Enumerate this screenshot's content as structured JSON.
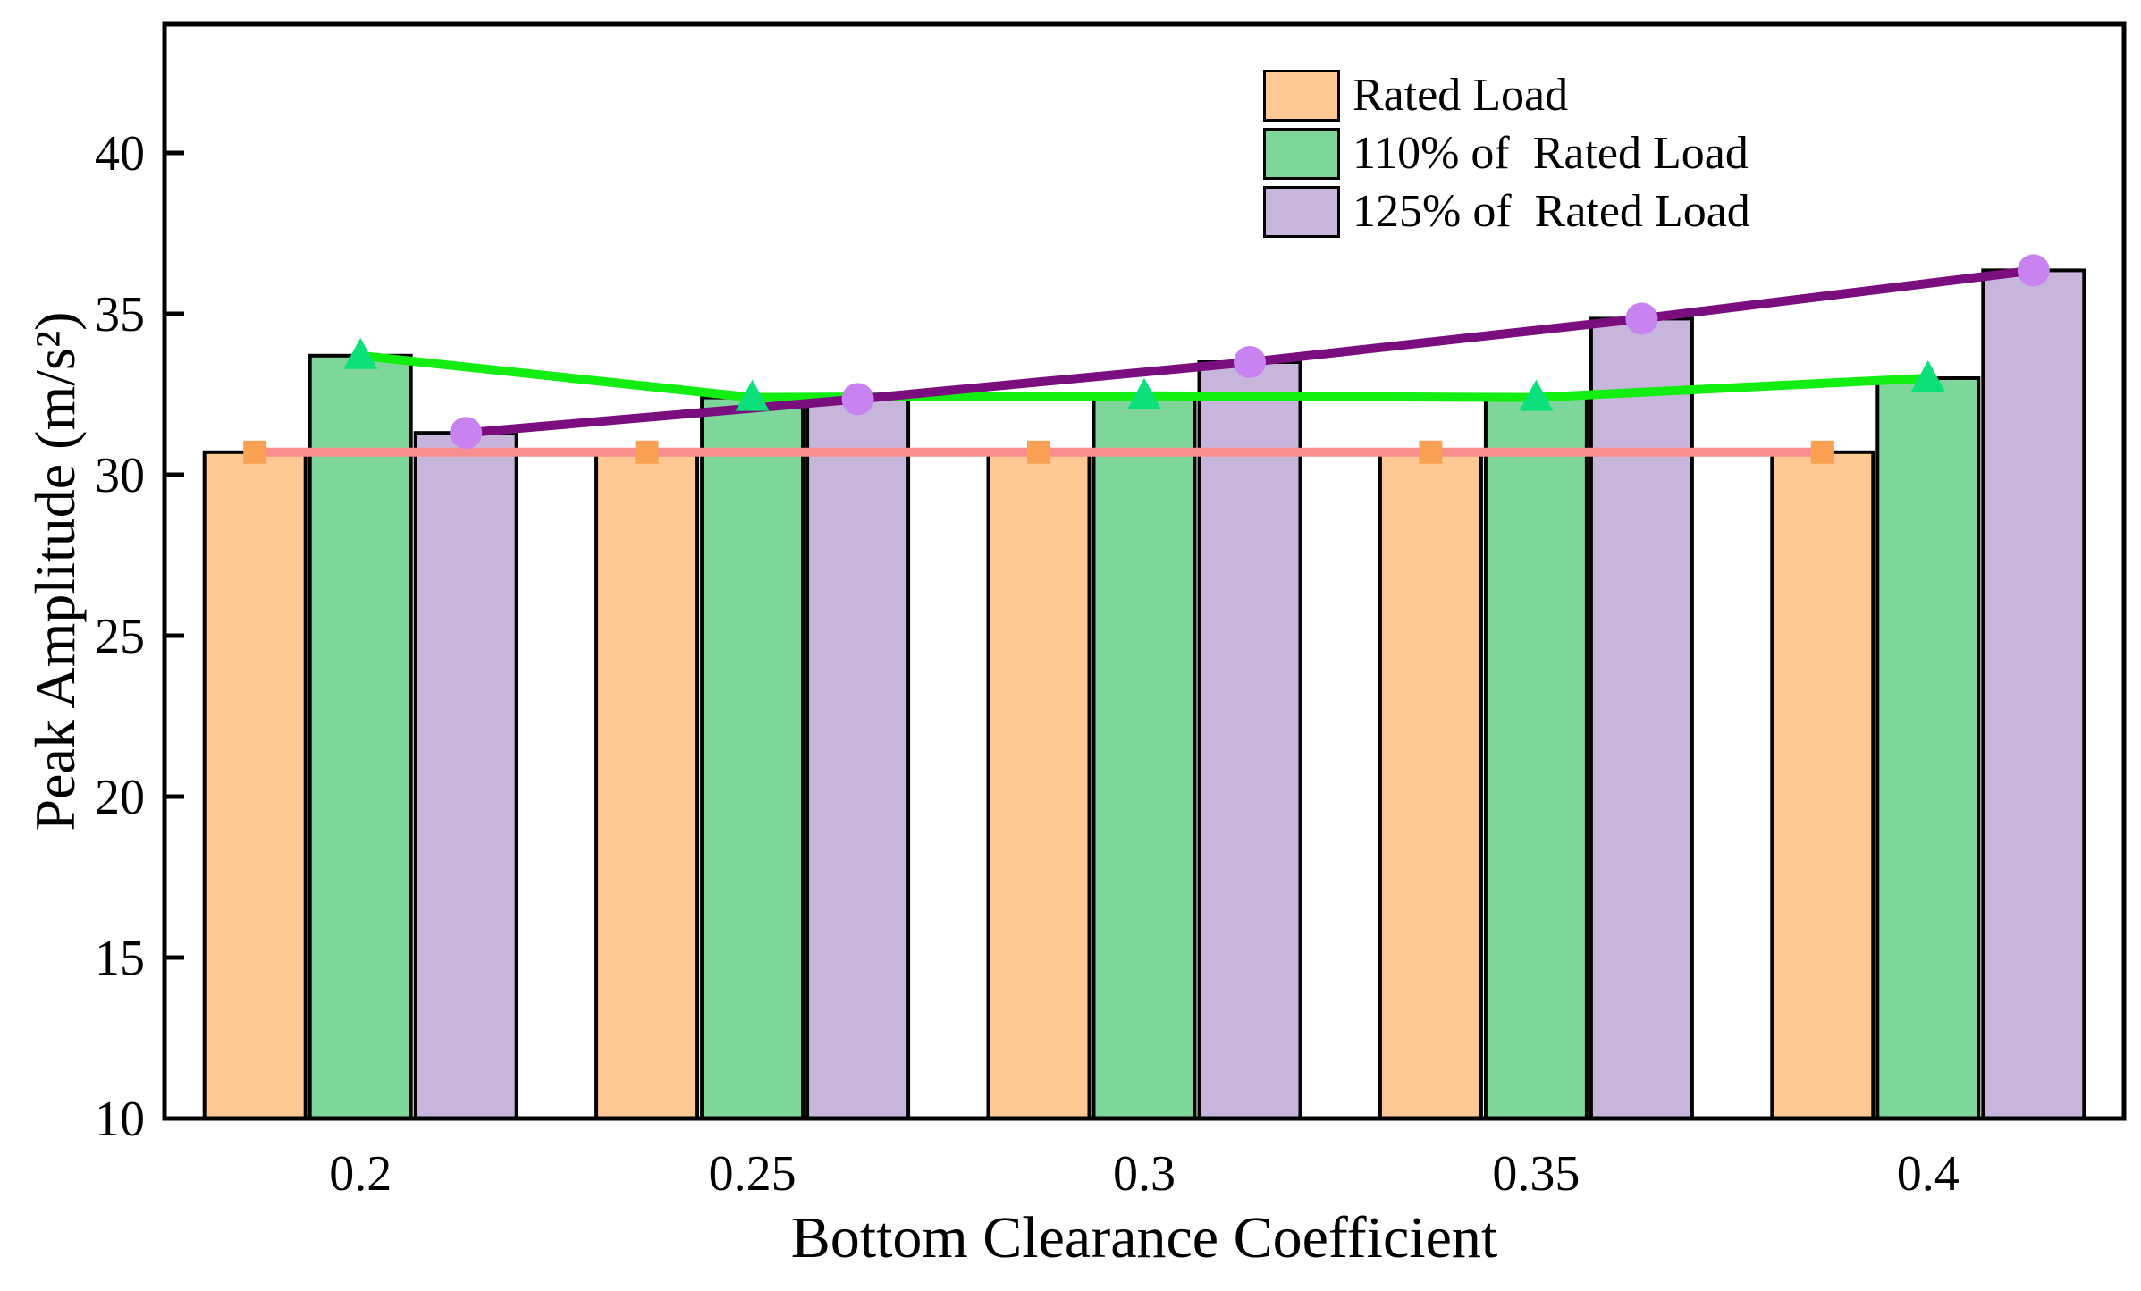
{
  "figure": {
    "background": "#ffffff",
    "frame_color": "#000000"
  },
  "chart_data": {
    "type": "bar",
    "title": "",
    "xlabel": "Bottom Clearance Coefficient",
    "ylabel": "Peak Amplitude (m/s²)",
    "categories": [
      "0.2",
      "0.25",
      "0.3",
      "0.35",
      "0.4"
    ],
    "series": [
      {
        "name": "Rated Load",
        "values": [
          30.7,
          30.7,
          30.7,
          30.7,
          30.7
        ],
        "bar_color": "#FFC894",
        "line_color": "#F98E8E",
        "marker": "square",
        "marker_color": "#F9A052"
      },
      {
        "name": "110% of  Rated Load",
        "values": [
          33.7,
          32.4,
          32.45,
          32.4,
          33.0
        ],
        "bar_color": "#7ED69A",
        "line_color": "#12EE12",
        "marker": "triangle",
        "marker_color": "#0CE07A"
      },
      {
        "name": "125% of  Rated Load",
        "values": [
          31.3,
          32.35,
          33.5,
          34.85,
          36.35
        ],
        "bar_color": "#C8B5DC",
        "line_color": "#7B0E7E",
        "marker": "circle",
        "marker_color": "#C983F0"
      }
    ],
    "bar_edge_color": "#000000",
    "ylim": [
      10,
      44
    ],
    "yticks": [
      10,
      15,
      20,
      25,
      30,
      35,
      40
    ],
    "grid": false,
    "legend_position": "top-right",
    "overlay_lines_connect_bar_tops": true
  }
}
